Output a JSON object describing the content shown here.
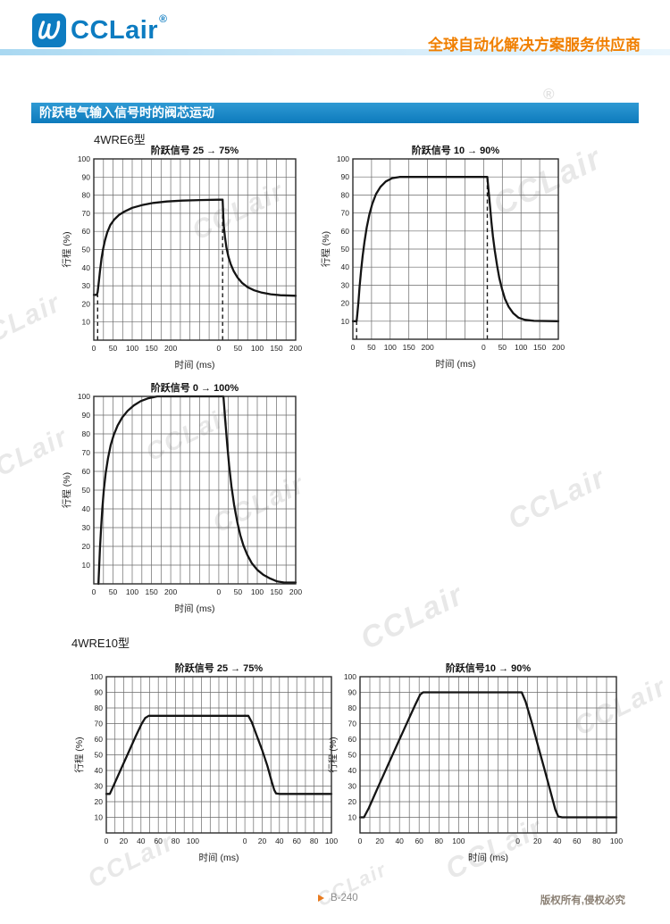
{
  "header": {
    "logo_text": "CCLair",
    "registered_mark": "®",
    "tagline": "全球自动化解决方案服务供应商"
  },
  "section": {
    "title": "阶跃电气输入信号时的阀芯运动",
    "model_1": "4WRE6型",
    "model_2": "4WRE10型"
  },
  "watermark": {
    "text": "CCLair",
    "reg": "®"
  },
  "footer": {
    "page": "B-240",
    "copyright": "版权所有,侵权必究"
  },
  "chart_data": [
    {
      "type": "line",
      "model": "4WRE6型",
      "title": "阶跃信号 25 → 75%",
      "xlabel": "时间 (ms)",
      "ylabel": "行程 (%)",
      "ylim": [
        0,
        100
      ],
      "y_ticks": [
        10,
        20,
        30,
        40,
        50,
        60,
        70,
        80,
        90,
        100
      ],
      "grid": true,
      "x_segments": [
        {
          "label_ticks": [
            0,
            50,
            100,
            150,
            200
          ],
          "grid_step": 25,
          "length": 325
        },
        {
          "label_ticks": [
            0,
            50,
            100,
            150,
            200
          ],
          "grid_step": 25,
          "length": 200
        }
      ],
      "dashed_markers": [
        {
          "segment": 0,
          "x_ms": 10,
          "from_pct": 0,
          "to_pct": 25
        },
        {
          "segment": 1,
          "x_ms": 10,
          "from_pct": 0,
          "to_pct": 77.5
        }
      ],
      "series": [
        {
          "name": "response-rise",
          "segment": 0,
          "points_ms_pct": [
            [
              0,
              25
            ],
            [
              8,
              25
            ],
            [
              10,
              26.5
            ],
            [
              13,
              32
            ],
            [
              16,
              38
            ],
            [
              20,
              45
            ],
            [
              24,
              50
            ],
            [
              29,
              55
            ],
            [
              35,
              59.5
            ],
            [
              43,
              63.5
            ],
            [
              53,
              66.5
            ],
            [
              65,
              69
            ],
            [
              80,
              71
            ],
            [
              100,
              73
            ],
            [
              125,
              74.5
            ],
            [
              155,
              75.7
            ],
            [
              190,
              76.5
            ],
            [
              230,
              77
            ],
            [
              275,
              77.3
            ],
            [
              325,
              77.5
            ]
          ]
        },
        {
          "name": "response-fall",
          "segment": 1,
          "points_ms_pct": [
            [
              0,
              77.5
            ],
            [
              10,
              77.5
            ],
            [
              11.5,
              69
            ],
            [
              13,
              63
            ],
            [
              16,
              57
            ],
            [
              20,
              51
            ],
            [
              25,
              46
            ],
            [
              31,
              42
            ],
            [
              39,
              38
            ],
            [
              49,
              34.5
            ],
            [
              61,
              31.5
            ],
            [
              75,
              29.2
            ],
            [
              92,
              27.5
            ],
            [
              112,
              26.2
            ],
            [
              135,
              25.3
            ],
            [
              160,
              24.8
            ],
            [
              200,
              24.5
            ]
          ]
        }
      ]
    },
    {
      "type": "line",
      "model": "4WRE6型",
      "title": "阶跃信号 10 → 90%",
      "xlabel": "时间 (ms)",
      "ylabel": "行程 (%)",
      "ylim": [
        0,
        100
      ],
      "y_ticks": [
        10,
        20,
        30,
        40,
        50,
        60,
        70,
        80,
        90,
        100
      ],
      "grid": true,
      "x_segments": [
        {
          "label_ticks": [
            0,
            50,
            100,
            150,
            200
          ],
          "grid_step": 50,
          "length": 350
        },
        {
          "label_ticks": [
            0,
            50,
            100,
            150,
            200
          ],
          "grid_step": 50,
          "length": 200
        }
      ],
      "dashed_markers": [
        {
          "segment": 0,
          "x_ms": 10,
          "from_pct": 0,
          "to_pct": 10
        },
        {
          "segment": 1,
          "x_ms": 10,
          "from_pct": 0,
          "to_pct": 90
        }
      ],
      "series": [
        {
          "name": "response-rise",
          "segment": 0,
          "points_ms_pct": [
            [
              0,
              10
            ],
            [
              10,
              10
            ],
            [
              12,
              14
            ],
            [
              15,
              21
            ],
            [
              18,
              29
            ],
            [
              22,
              38
            ],
            [
              26,
              46
            ],
            [
              31,
              54
            ],
            [
              37,
              62
            ],
            [
              44,
              69
            ],
            [
              52,
              75
            ],
            [
              62,
              80.5
            ],
            [
              74,
              84.5
            ],
            [
              88,
              87.5
            ],
            [
              105,
              89.3
            ],
            [
              125,
              90
            ],
            [
              350,
              90
            ]
          ]
        },
        {
          "name": "response-fall",
          "segment": 1,
          "points_ms_pct": [
            [
              0,
              90
            ],
            [
              10,
              90
            ],
            [
              13,
              83
            ],
            [
              17,
              74
            ],
            [
              21,
              65
            ],
            [
              25,
              57
            ],
            [
              30,
              49
            ],
            [
              36,
              41
            ],
            [
              42,
              34
            ],
            [
              49,
              28
            ],
            [
              57,
              22.5
            ],
            [
              67,
              18
            ],
            [
              79,
              14.5
            ],
            [
              93,
              12
            ],
            [
              110,
              10.8
            ],
            [
              135,
              10.2
            ],
            [
              200,
              10
            ]
          ]
        }
      ]
    },
    {
      "type": "line",
      "model": "4WRE6型",
      "title": "阶跃信号 0 → 100%",
      "xlabel": "时间 (ms)",
      "ylabel": "行程 (%)",
      "ylim": [
        0,
        100
      ],
      "y_ticks": [
        10,
        20,
        30,
        40,
        50,
        60,
        70,
        80,
        90,
        100
      ],
      "grid": true,
      "x_segments": [
        {
          "label_ticks": [
            0,
            50,
            100,
            150,
            200
          ],
          "grid_step": 25,
          "length": 325
        },
        {
          "label_ticks": [
            0,
            50,
            100,
            150,
            200
          ],
          "grid_step": 25,
          "length": 200
        }
      ],
      "dashed_markers": [],
      "series": [
        {
          "name": "response-rise",
          "segment": 0,
          "points_ms_pct": [
            [
              12,
              0
            ],
            [
              14,
              9
            ],
            [
              16,
              19
            ],
            [
              19,
              30
            ],
            [
              22,
              40
            ],
            [
              26,
              50
            ],
            [
              31,
              59
            ],
            [
              37,
              67
            ],
            [
              44,
              74
            ],
            [
              52,
              79.5
            ],
            [
              62,
              84.5
            ],
            [
              74,
              88.8
            ],
            [
              88,
              92.3
            ],
            [
              104,
              95.2
            ],
            [
              122,
              97.5
            ],
            [
              142,
              99
            ],
            [
              165,
              100
            ],
            [
              325,
              100
            ]
          ]
        },
        {
          "name": "response-fall",
          "segment": 1,
          "points_ms_pct": [
            [
              0,
              100
            ],
            [
              12,
              100
            ],
            [
              15,
              92
            ],
            [
              18,
              84
            ],
            [
              22,
              74
            ],
            [
              27,
              63
            ],
            [
              33,
              52
            ],
            [
              40,
              42
            ],
            [
              48,
              33
            ],
            [
              56,
              26
            ],
            [
              64,
              20.5
            ],
            [
              74,
              15.5
            ],
            [
              86,
              11
            ],
            [
              100,
              7.5
            ],
            [
              116,
              4.8
            ],
            [
              134,
              2.8
            ],
            [
              152,
              1.3
            ],
            [
              170,
              0.7
            ],
            [
              200,
              0.7
            ]
          ]
        }
      ]
    },
    {
      "type": "line",
      "model": "4WRE10型",
      "title": "阶跃信号 25 → 75%",
      "xlabel": "时间 (ms)",
      "ylabel": "行程 (%)",
      "ylim": [
        0,
        100
      ],
      "y_ticks": [
        10,
        20,
        30,
        40,
        50,
        60,
        70,
        80,
        90,
        100
      ],
      "grid": true,
      "x_segments": [
        {
          "label_ticks": [
            0,
            20,
            40,
            60,
            80,
            100
          ],
          "grid_step": 10,
          "length": 160
        },
        {
          "label_ticks": [
            0,
            20,
            40,
            60,
            80,
            100
          ],
          "grid_step": 10,
          "length": 100
        }
      ],
      "dashed_markers": [],
      "series": [
        {
          "name": "response-rise",
          "segment": 0,
          "points_ms_pct": [
            [
              0,
              25
            ],
            [
              4,
              25
            ],
            [
              9,
              31
            ],
            [
              17,
              41
            ],
            [
              26,
              52
            ],
            [
              34,
              62
            ],
            [
              41,
              70
            ],
            [
              45,
              73.6
            ],
            [
              49,
              75
            ],
            [
              160,
              75
            ]
          ]
        },
        {
          "name": "response-fall",
          "segment": 1,
          "points_ms_pct": [
            [
              0,
              75
            ],
            [
              4,
              75
            ],
            [
              8,
              71
            ],
            [
              14,
              62
            ],
            [
              20,
              53
            ],
            [
              26,
              43
            ],
            [
              31,
              33
            ],
            [
              34,
              27.5
            ],
            [
              36,
              25.3
            ],
            [
              40,
              25
            ],
            [
              100,
              25
            ]
          ]
        }
      ]
    },
    {
      "type": "line",
      "model": "4WRE10型",
      "title": "阶跃信号10 → 90%",
      "xlabel": "时间 (ms)",
      "ylabel": "行程 (%)",
      "ylim": [
        0,
        100
      ],
      "y_ticks": [
        10,
        20,
        30,
        40,
        50,
        60,
        70,
        80,
        90,
        100
      ],
      "grid": true,
      "x_segments": [
        {
          "label_ticks": [
            0,
            20,
            40,
            60,
            80,
            100
          ],
          "grid_step": 10,
          "length": 160
        },
        {
          "label_ticks": [
            0,
            20,
            40,
            60,
            80,
            100
          ],
          "grid_step": 10,
          "length": 100
        }
      ],
      "dashed_markers": [],
      "series": [
        {
          "name": "response-rise",
          "segment": 0,
          "points_ms_pct": [
            [
              0,
              10
            ],
            [
              4,
              10
            ],
            [
              9,
              16
            ],
            [
              18,
              29
            ],
            [
              28,
              43
            ],
            [
              38,
              57
            ],
            [
              48,
              71
            ],
            [
              56,
              82
            ],
            [
              61,
              88.5
            ],
            [
              64,
              90
            ],
            [
              160,
              90
            ]
          ]
        },
        {
          "name": "response-fall",
          "segment": 1,
          "points_ms_pct": [
            [
              0,
              90
            ],
            [
              4,
              90
            ],
            [
              8,
              84
            ],
            [
              14,
              71
            ],
            [
              20,
              57
            ],
            [
              27,
              41
            ],
            [
              33,
              27
            ],
            [
              38,
              15
            ],
            [
              41,
              10.5
            ],
            [
              45,
              10
            ],
            [
              100,
              10
            ]
          ]
        }
      ]
    }
  ]
}
